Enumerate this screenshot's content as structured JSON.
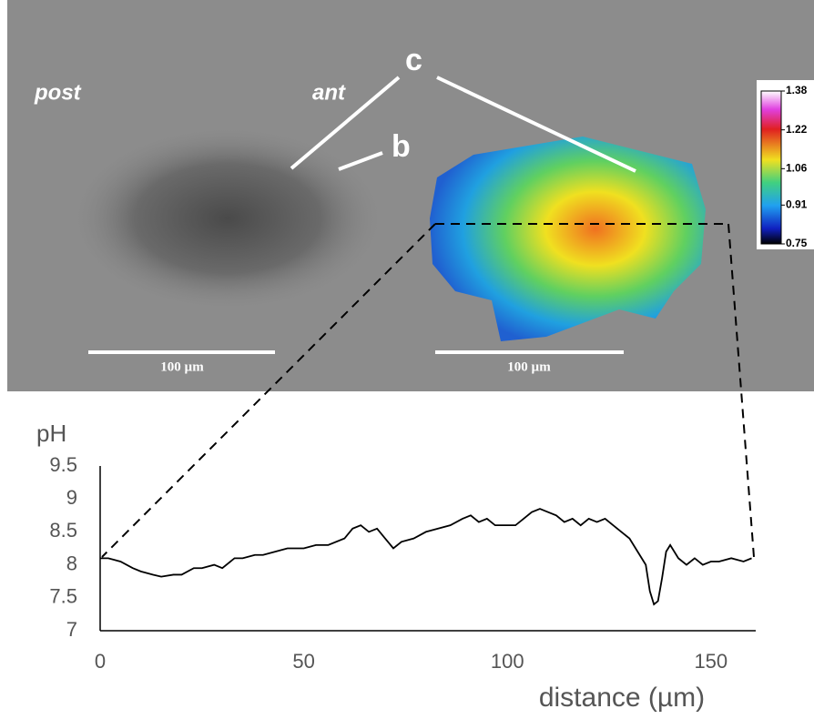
{
  "image": {
    "labels": {
      "post": "post",
      "ant": "ant",
      "c": "c",
      "b": "b"
    },
    "scale_bars": [
      "100 µm",
      "100 µm"
    ],
    "colorbar": {
      "lim": [
        0.75,
        1.38
      ],
      "ticks": [
        1.38,
        1.22,
        1.06,
        0.91,
        0.75
      ]
    }
  },
  "chart_data": {
    "type": "line",
    "ylabel": "pH",
    "xlabel": "distance (µm)",
    "x": [
      0,
      2,
      5,
      8,
      10,
      13,
      15,
      18,
      20,
      23,
      25,
      28,
      30,
      33,
      35,
      38,
      40,
      43,
      46,
      50,
      53,
      56,
      60,
      62,
      64,
      66,
      68,
      70,
      72,
      74,
      77,
      80,
      83,
      86,
      89,
      91,
      93,
      95,
      97,
      100,
      102,
      104,
      106,
      108,
      110,
      112,
      114,
      116,
      118,
      120,
      122,
      124,
      126,
      128,
      130,
      132,
      134,
      135,
      136,
      137,
      138,
      139,
      140,
      142,
      144,
      146,
      148,
      150,
      152,
      155,
      158,
      160
    ],
    "series": [
      {
        "color": "#000000",
        "values": [
          8.1,
          8.1,
          8.05,
          7.95,
          7.9,
          7.85,
          7.82,
          7.85,
          7.85,
          7.95,
          7.95,
          8.0,
          7.95,
          8.1,
          8.1,
          8.15,
          8.15,
          8.2,
          8.25,
          8.25,
          8.3,
          8.3,
          8.4,
          8.55,
          8.6,
          8.5,
          8.55,
          8.4,
          8.25,
          8.35,
          8.4,
          8.5,
          8.55,
          8.6,
          8.7,
          8.75,
          8.65,
          8.7,
          8.6,
          8.6,
          8.6,
          8.7,
          8.8,
          8.85,
          8.8,
          8.75,
          8.65,
          8.7,
          8.6,
          8.7,
          8.65,
          8.7,
          8.6,
          8.5,
          8.4,
          8.2,
          8.0,
          7.6,
          7.4,
          7.45,
          7.8,
          8.2,
          8.3,
          8.1,
          8.0,
          8.1,
          8.0,
          8.05,
          8.05,
          8.1,
          8.05,
          8.1
        ]
      }
    ],
    "xlim": [
      0,
      161
    ],
    "ylim": [
      7,
      9.5
    ],
    "xticks": [
      0,
      50,
      100,
      150
    ],
    "yticks": [
      7,
      7.5,
      8,
      8.5,
      9,
      9.5
    ]
  }
}
